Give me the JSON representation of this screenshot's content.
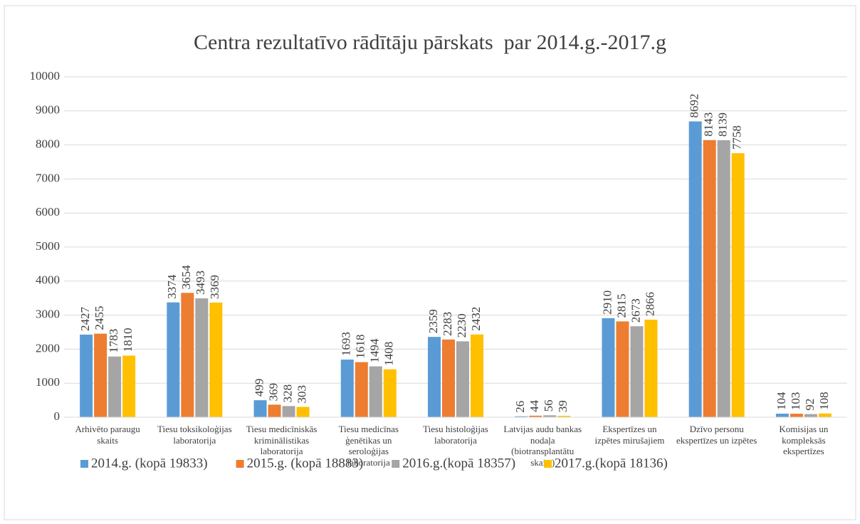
{
  "chart_data": {
    "type": "bar",
    "title": "Centra rezultatīvo rādītāju pārskats  par 2014.g.-2017.g",
    "categories": [
      "Arhivēto paraugu skaits",
      "Tiesu toksikoloģijas laboratorija",
      "Tiesu medicīniskās kriminālistikas laboratorija",
      "Tiesu medicīnas ģenētikas un seroloģijas laboratorija",
      "Tiesu histoloģijas laboratorija",
      "Latvijas audu bankas nodaļa (biotransplantātu skaits)",
      "Ekspertīzes un izpētes mirušajiem",
      "Dzīvo personu ekspertīzes un izpētes",
      "Komisijas un kompleksās ekspertīzes"
    ],
    "series": [
      {
        "name": "2014.g. (kopā 19833)",
        "color": "#5b9bd5",
        "values": [
          2427,
          3374,
          499,
          1693,
          2359,
          26,
          2910,
          8692,
          104
        ]
      },
      {
        "name": "2015.g. (kopā 18883)",
        "color": "#ed7d31",
        "values": [
          2455,
          3654,
          369,
          1618,
          2283,
          44,
          2815,
          8143,
          103
        ]
      },
      {
        "name": "2016.g.(kopā 18357)",
        "color": "#a5a5a5",
        "values": [
          1783,
          3493,
          328,
          1494,
          2230,
          56,
          2673,
          8139,
          92
        ]
      },
      {
        "name": "2017.g.(kopā 18136)",
        "color": "#ffc000",
        "values": [
          1810,
          3369,
          303,
          1408,
          2432,
          39,
          2866,
          7758,
          108
        ]
      }
    ],
    "ylim": [
      0,
      10000
    ],
    "yticks": [
      0,
      1000,
      2000,
      3000,
      4000,
      5000,
      6000,
      7000,
      8000,
      9000,
      10000
    ],
    "grid": true,
    "legend": "bottom"
  }
}
